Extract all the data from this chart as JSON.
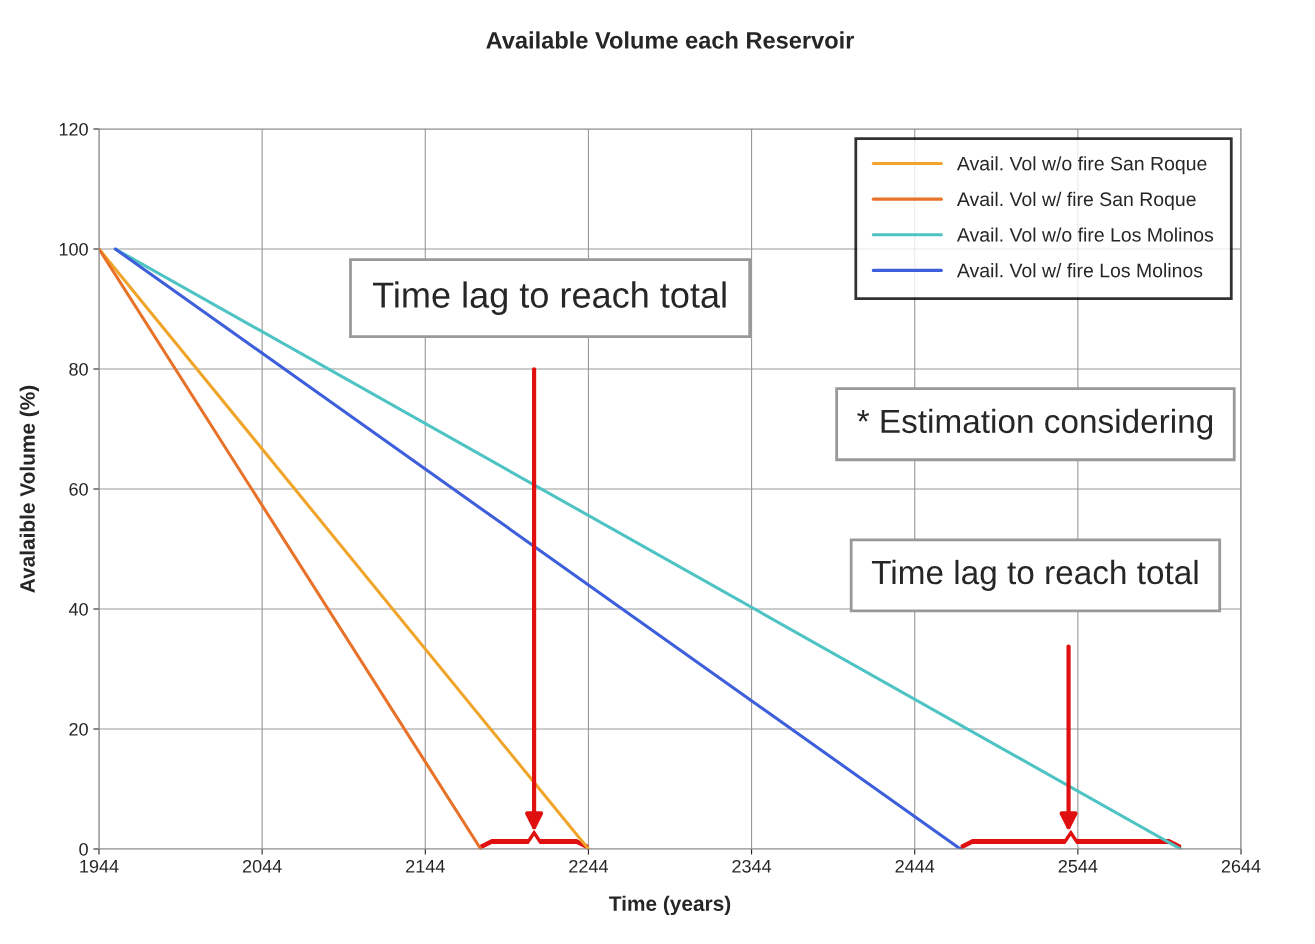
{
  "chart_data": {
    "type": "line",
    "title": "Available Volume each Reservoir",
    "xlabel": "Time (years)",
    "ylabel": "Avalaible Volume (%)",
    "series": [
      {
        "name": "Avail. Vol w/o fire San Roque",
        "color": "#f0a52a",
        "x": [
          1944,
          2244
        ],
        "values": [
          100,
          0
        ]
      },
      {
        "name": "Avail. Vol w/ fire San Roque",
        "color": "#e8722a",
        "x": [
          1944,
          2178
        ],
        "values": [
          100,
          0
        ]
      },
      {
        "name": "Avail. Vol w/o fire Los Molinos",
        "color": "#4ec3c3",
        "x": [
          1954,
          2607
        ],
        "values": [
          100,
          0
        ]
      },
      {
        "name": "Avail. Vol w/ fire Los Molinos",
        "color": "#3d5fdc",
        "x": [
          1954,
          2472
        ],
        "values": [
          100,
          0
        ]
      }
    ],
    "xlim": [
      1944,
      2644
    ],
    "xticks": [
      1944,
      2044,
      2144,
      2244,
      2344,
      2444,
      2544,
      2644
    ],
    "ylim": [
      0,
      120
    ],
    "yticks": [
      0,
      20,
      40,
      60,
      80,
      100,
      120
    ],
    "grid": true,
    "legend": "top right",
    "marker": "none",
    "line_style": "solid",
    "annotations": [
      "Time lag to reach total",
      "* Estimation considering",
      "Time lag to reach total"
    ]
  }
}
